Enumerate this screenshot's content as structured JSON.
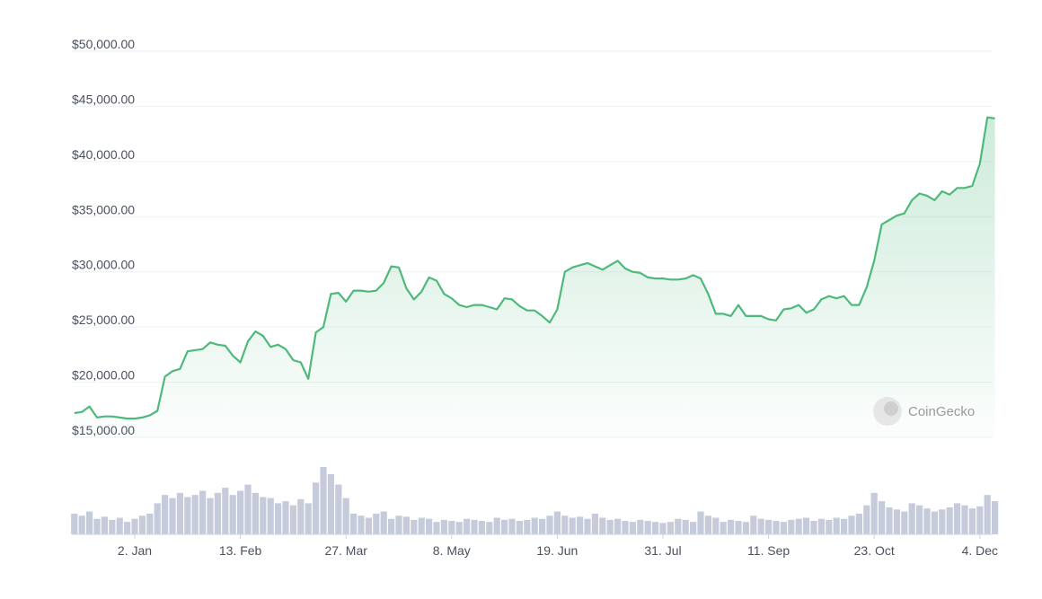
{
  "chart_data": {
    "type": "line",
    "categories": [
      null,
      null,
      null,
      null,
      null,
      null,
      null,
      null,
      "2. Jan",
      null,
      null,
      null,
      null,
      null,
      null,
      null,
      null,
      null,
      null,
      null,
      null,
      null,
      "13. Feb",
      null,
      null,
      null,
      null,
      null,
      null,
      null,
      null,
      null,
      null,
      null,
      null,
      null,
      "27. Mar",
      null,
      null,
      null,
      null,
      null,
      null,
      null,
      null,
      null,
      null,
      null,
      null,
      null,
      "8. May",
      null,
      null,
      null,
      null,
      null,
      null,
      null,
      null,
      null,
      null,
      null,
      null,
      null,
      "19. Jun",
      null,
      null,
      null,
      null,
      null,
      null,
      null,
      null,
      null,
      null,
      null,
      null,
      null,
      "31. Jul",
      null,
      null,
      null,
      null,
      null,
      null,
      null,
      null,
      null,
      null,
      null,
      null,
      null,
      "11. Sep",
      null,
      null,
      null,
      null,
      null,
      null,
      null,
      null,
      null,
      null,
      null,
      null,
      null,
      "23. Oct",
      null,
      null,
      null,
      null,
      null,
      null,
      null,
      null,
      null,
      null,
      null,
      null,
      null,
      "4. Dec",
      null,
      null
    ],
    "series": [
      {
        "name": "Price",
        "color": "#4fb97c",
        "values": [
          17200,
          17300,
          17800,
          16800,
          16900,
          16900,
          16800,
          16700,
          16700,
          16800,
          17000,
          17400,
          20500,
          21000,
          21200,
          22800,
          22900,
          23000,
          23600,
          23400,
          23300,
          22400,
          21800,
          23700,
          24600,
          24200,
          23200,
          23400,
          23000,
          22000,
          21800,
          20300,
          24500,
          25000,
          28000,
          28100,
          27300,
          28300,
          28300,
          28200,
          28300,
          29000,
          30500,
          30400,
          28500,
          27500,
          28200,
          29500,
          29200,
          28000,
          27600,
          27000,
          26800,
          27000,
          27000,
          26800,
          26600,
          27600,
          27500,
          26900,
          26500,
          26500,
          26000,
          25400,
          26600,
          30000,
          30400,
          30600,
          30800,
          30500,
          30200,
          30600,
          31000,
          30300,
          30000,
          29900,
          29500,
          29400,
          29400,
          29300,
          29300,
          29400,
          29700,
          29400,
          28000,
          26200,
          26200,
          26000,
          27000,
          26000,
          26000,
          26000,
          25700,
          25600,
          26600,
          26700,
          27000,
          26300,
          26600,
          27500,
          27800,
          27600,
          27800,
          27000,
          27000,
          28600,
          31000,
          34300,
          34700,
          35100,
          35300,
          36500,
          37100,
          36900,
          36500,
          37300,
          37000,
          37600,
          37600,
          37800,
          39800,
          44000,
          43900
        ]
      },
      {
        "name": "Volume",
        "color": "#c6cbdb",
        "values": [
          20,
          18,
          22,
          15,
          17,
          14,
          16,
          12,
          15,
          18,
          20,
          30,
          38,
          35,
          40,
          36,
          38,
          42,
          35,
          40,
          45,
          38,
          42,
          48,
          40,
          36,
          35,
          30,
          32,
          28,
          34,
          30,
          50,
          65,
          58,
          48,
          35,
          20,
          18,
          16,
          20,
          22,
          15,
          18,
          17,
          14,
          16,
          15,
          12,
          14,
          13,
          12,
          15,
          14,
          13,
          12,
          16,
          14,
          15,
          13,
          14,
          16,
          15,
          18,
          22,
          18,
          16,
          17,
          15,
          20,
          16,
          14,
          15,
          13,
          12,
          14,
          13,
          12,
          11,
          12,
          15,
          14,
          12,
          22,
          18,
          16,
          12,
          14,
          13,
          12,
          18,
          15,
          14,
          13,
          12,
          14,
          15,
          16,
          13,
          15,
          14,
          16,
          15,
          18,
          20,
          28,
          40,
          32,
          26,
          24,
          22,
          30,
          28,
          25,
          22,
          24,
          26,
          30,
          28,
          25,
          27,
          38,
          32
        ]
      }
    ],
    "ylim": [
      15000,
      50000
    ],
    "yticks": [
      {
        "value": 15000,
        "label": "$15,000.00"
      },
      {
        "value": 20000,
        "label": "$20,000.00"
      },
      {
        "value": 25000,
        "label": "$25,000.00"
      },
      {
        "value": 30000,
        "label": "$30,000.00"
      },
      {
        "value": 35000,
        "label": "$35,000.00"
      },
      {
        "value": 40000,
        "label": "$40,000.00"
      },
      {
        "value": 45000,
        "label": "$45,000.00"
      },
      {
        "value": 50000,
        "label": "$50,000.00"
      }
    ],
    "grid": true,
    "watermark": "CoinGecko"
  }
}
